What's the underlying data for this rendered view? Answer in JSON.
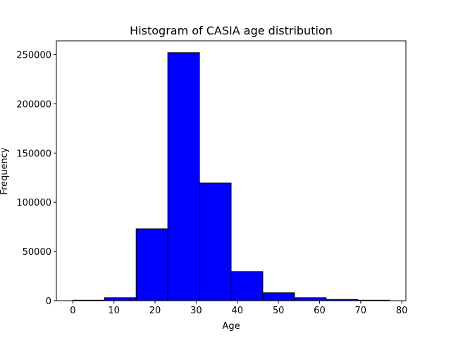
{
  "chart_data": {
    "type": "bar",
    "title": "Histogram of CASIA age distribution",
    "xlabel": "Age",
    "ylabel": "Frequency",
    "xlim": [
      -4,
      81
    ],
    "ylim": [
      0,
      264000
    ],
    "bar_color": "#0000ff",
    "edge_color": "#000000",
    "bins": [
      {
        "x0": 0.0,
        "x1": 7.7,
        "value": 500
      },
      {
        "x0": 7.7,
        "x1": 15.4,
        "value": 3000
      },
      {
        "x0": 15.4,
        "x1": 23.1,
        "value": 73000
      },
      {
        "x0": 23.1,
        "x1": 30.8,
        "value": 252000
      },
      {
        "x0": 30.8,
        "x1": 38.5,
        "value": 119500
      },
      {
        "x0": 38.5,
        "x1": 46.2,
        "value": 29500
      },
      {
        "x0": 46.2,
        "x1": 53.9,
        "value": 8000
      },
      {
        "x0": 53.9,
        "x1": 61.6,
        "value": 3000
      },
      {
        "x0": 61.6,
        "x1": 69.3,
        "value": 1200
      },
      {
        "x0": 69.3,
        "x1": 77.0,
        "value": 500
      }
    ],
    "xticks": [
      {
        "value": 0,
        "label": "0"
      },
      {
        "value": 10,
        "label": "10"
      },
      {
        "value": 20,
        "label": "20"
      },
      {
        "value": 30,
        "label": "30"
      },
      {
        "value": 40,
        "label": "40"
      },
      {
        "value": 50,
        "label": "50"
      },
      {
        "value": 60,
        "label": "60"
      },
      {
        "value": 70,
        "label": "70"
      },
      {
        "value": 80,
        "label": "80"
      }
    ],
    "yticks": [
      {
        "value": 0,
        "label": "0"
      },
      {
        "value": 50000,
        "label": "50000"
      },
      {
        "value": 100000,
        "label": "100000"
      },
      {
        "value": 150000,
        "label": "150000"
      },
      {
        "value": 200000,
        "label": "200000"
      },
      {
        "value": 250000,
        "label": "250000"
      }
    ],
    "grid": false,
    "legend": "none"
  }
}
